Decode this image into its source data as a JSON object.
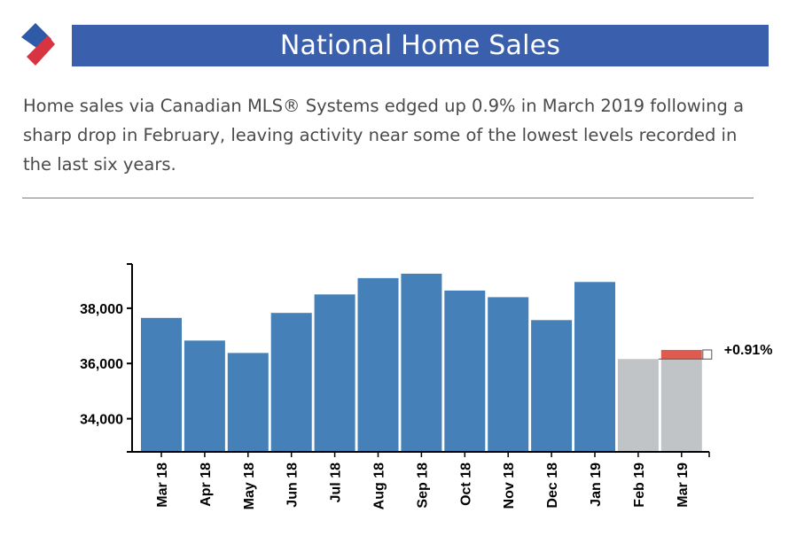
{
  "header": {
    "title": "National Home Sales",
    "logo_colors": {
      "top": "#2f5aa8",
      "bottom": "#d83340"
    }
  },
  "intro_text": "Home sales via Canadian MLS® Systems edged up 0.9% in March 2019 following a sharp drop in February, leaving activity near some of the lowest levels recorded in the last six years.",
  "chart_data": {
    "type": "bar",
    "title": "",
    "xlabel": "",
    "ylabel": "",
    "categories": [
      "Mar 18",
      "Apr 18",
      "May 18",
      "Jun 18",
      "Jul 18",
      "Aug 18",
      "Sep 18",
      "Oct 18",
      "Nov 18",
      "Dec 18",
      "Jan 19",
      "Feb 19",
      "Mar 19"
    ],
    "values": [
      37650,
      36830,
      36380,
      37830,
      38500,
      39090,
      39250,
      38640,
      38400,
      37570,
      38950,
      36160,
      36490
    ],
    "ylim": [
      32800,
      39600
    ],
    "yticks": [
      34000,
      36000,
      38000
    ],
    "ytick_labels": [
      "34,000",
      "36,000",
      "38,000"
    ],
    "colors": {
      "bar": "#4581b8",
      "highlight": "#c1c4c7",
      "change": "#e05b4f"
    },
    "highlight_categories": [
      "Feb 19",
      "Mar 19"
    ],
    "change_annotation": {
      "from_category": "Feb 19",
      "to_category": "Mar 19",
      "label": "+0.91%"
    },
    "grid": false
  }
}
